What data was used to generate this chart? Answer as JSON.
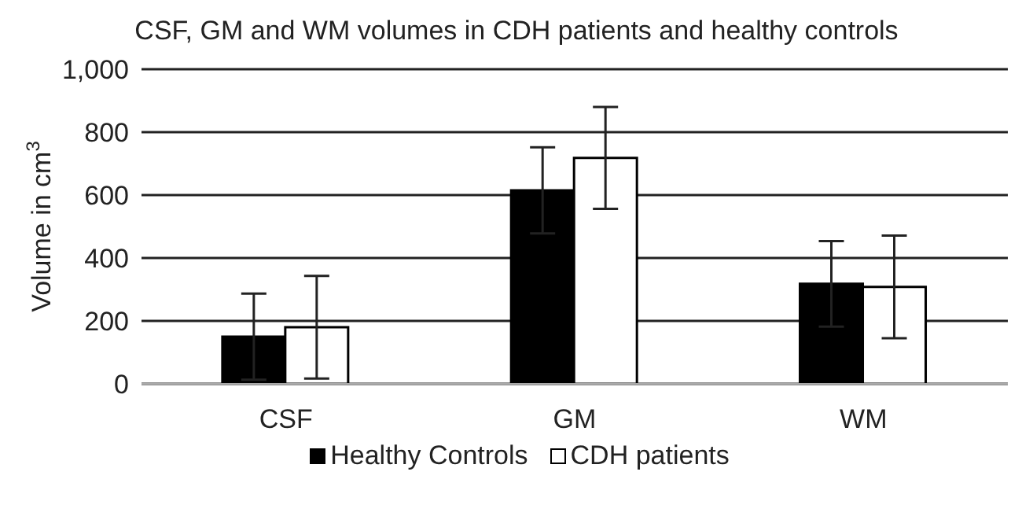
{
  "chart_data": {
    "type": "bar",
    "title": "CSF, GM and WM volumes in CDH patients and healthy controls",
    "ylabel": "Volume in cm$^{3}$",
    "categories": [
      "CSF",
      "GM",
      "WM"
    ],
    "series": [
      {
        "name": "Healthy Controls",
        "color": "#000000",
        "values": [
          150,
          615,
          318
        ],
        "errors": [
          137,
          137,
          136
        ]
      },
      {
        "name": "CDH patients",
        "color": "#ffffff",
        "values": [
          180,
          718,
          308
        ],
        "errors": [
          163,
          162,
          163
        ]
      }
    ],
    "ylim": [
      0,
      1000
    ],
    "yticks": [
      0,
      200,
      400,
      600,
      800,
      {
        "value": 1000,
        "label": "1,000"
      }
    ],
    "grid": "y",
    "legend": "bottom"
  }
}
